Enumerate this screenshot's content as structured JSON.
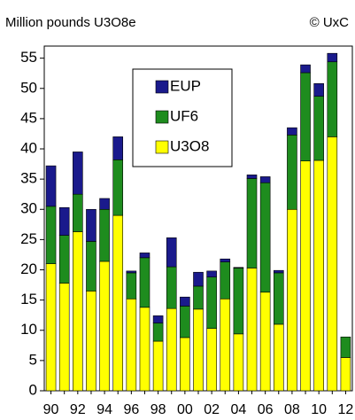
{
  "chart_data": {
    "type": "stacked_bar",
    "subtitle": "Million pounds U3O8e",
    "source": "© UxC",
    "categories": [
      "90",
      null,
      "92",
      null,
      "94",
      null,
      "96",
      null,
      "98",
      null,
      "00",
      null,
      "02",
      null,
      "04",
      null,
      "06",
      null,
      "08",
      null,
      "10",
      null,
      "12"
    ],
    "series": [
      {
        "name": "U3O8",
        "color": "#ffff00",
        "values": [
          21,
          17.8,
          26.3,
          16.5,
          21.4,
          29,
          15.2,
          13.8,
          8.2,
          13.6,
          8.8,
          13.5,
          10.3,
          15.2,
          9.4,
          20.3,
          16.3,
          11,
          30,
          38,
          38.1,
          42,
          5.5
        ]
      },
      {
        "name": "UF6",
        "color": "#1e8c1e",
        "values": [
          9.5,
          7.9,
          6.2,
          8.2,
          8.6,
          9.2,
          4.3,
          8.2,
          3.0,
          6.9,
          5.2,
          3.8,
          8.5,
          6.1,
          10.9,
          14.8,
          18.1,
          8.5,
          12.3,
          14.6,
          10.6,
          12.4,
          3.4
        ]
      },
      {
        "name": "EUP",
        "color": "#1a1a8c",
        "values": [
          6.7,
          4.6,
          7.0,
          5.3,
          1.8,
          3.8,
          0.3,
          0.8,
          1.2,
          4.8,
          1.5,
          2.3,
          1.0,
          0.5,
          0.1,
          0.6,
          1.0,
          0.4,
          1.2,
          1.3,
          2.1,
          1.4,
          0
        ]
      }
    ],
    "ylim": [
      0,
      57
    ],
    "yticks": [
      0,
      5,
      10,
      15,
      20,
      25,
      30,
      35,
      40,
      45,
      50,
      55
    ]
  }
}
